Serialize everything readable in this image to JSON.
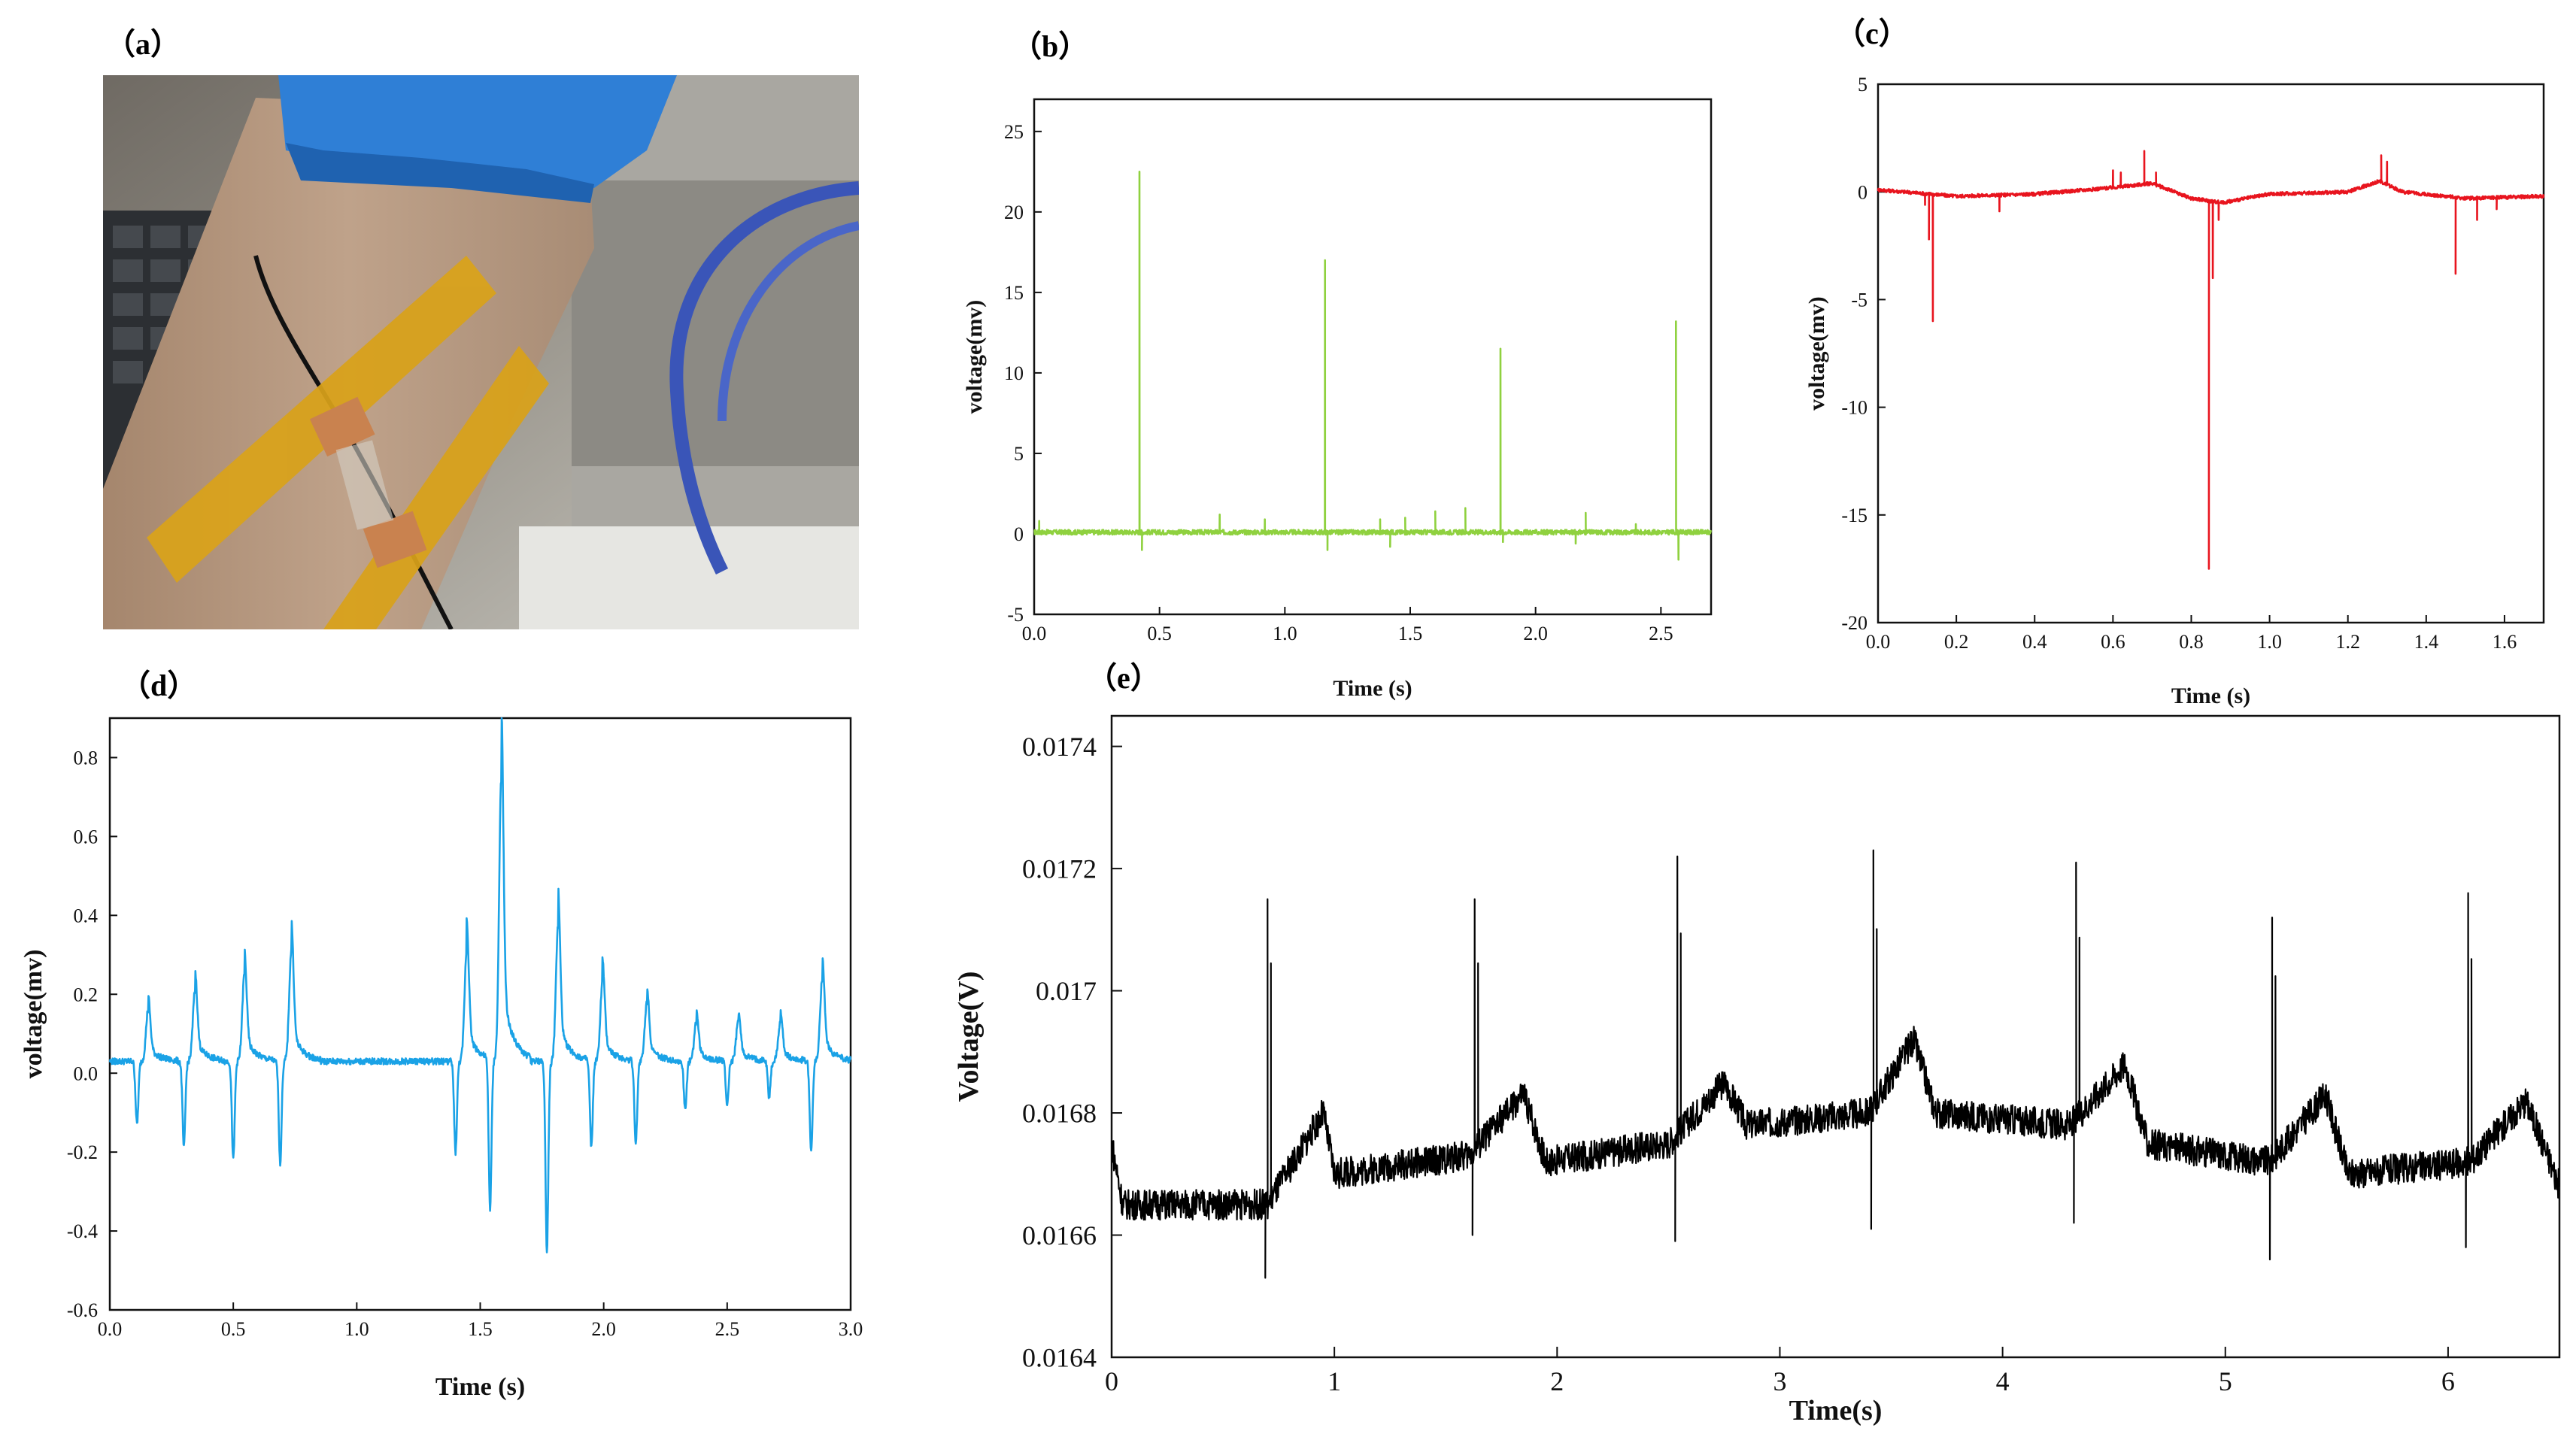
{
  "panels": {
    "a": {
      "label": "（a）"
    },
    "b": {
      "label": "（b）"
    },
    "c": {
      "label": "（c）"
    },
    "d": {
      "label": "（d）"
    },
    "e": {
      "label": "（e）"
    }
  },
  "photo": {
    "icon": "forearm-electrode-photo",
    "colors": {
      "glove": "#2f7fd6",
      "tape": "#d9a21a",
      "copper": "#c9824f",
      "skin": "#b3957d",
      "cable": "#3a55b8"
    }
  },
  "chart_data": [
    {
      "id": "b",
      "type": "line",
      "color": "#8fd13f",
      "xlabel": "Time (s)",
      "ylabel": "voltage(mv)",
      "xlim": [
        0,
        2.7
      ],
      "ylim": [
        -5,
        27
      ],
      "xticks": [
        "0.0",
        "0.5",
        "1.0",
        "1.5",
        "2.0",
        "2.5"
      ],
      "xtick_values": [
        0,
        0.5,
        1.0,
        1.5,
        2.0,
        2.5
      ],
      "yticks": [
        "-5",
        "0",
        "5",
        "10",
        "15",
        "20",
        "25"
      ],
      "ytick_values": [
        -5,
        0,
        5,
        10,
        15,
        20,
        25
      ],
      "baseline": 0.1,
      "noise": 0.15,
      "spikes": [
        {
          "x": 0.42,
          "y": 22.5
        },
        {
          "x": 0.43,
          "y": -1.0
        },
        {
          "x": 1.16,
          "y": 17.0
        },
        {
          "x": 1.17,
          "y": -1.0
        },
        {
          "x": 1.86,
          "y": 11.5
        },
        {
          "x": 1.87,
          "y": -0.5
        },
        {
          "x": 2.56,
          "y": 13.2
        },
        {
          "x": 2.57,
          "y": -1.6
        },
        {
          "x": 0.02,
          "y": 0.8
        },
        {
          "x": 0.74,
          "y": 1.2
        },
        {
          "x": 0.92,
          "y": 0.9
        },
        {
          "x": 1.38,
          "y": 0.9
        },
        {
          "x": 1.48,
          "y": 1.0
        },
        {
          "x": 1.6,
          "y": 1.4
        },
        {
          "x": 1.72,
          "y": 1.6
        },
        {
          "x": 2.2,
          "y": 1.3
        },
        {
          "x": 2.4,
          "y": 0.6
        },
        {
          "x": 1.42,
          "y": -0.8
        },
        {
          "x": 2.16,
          "y": -0.6
        }
      ]
    },
    {
      "id": "c",
      "type": "line",
      "color": "#e8141e",
      "xlabel": "Time (s)",
      "ylabel": "voltage(mv)",
      "xlim": [
        0,
        1.7
      ],
      "ylim": [
        -20,
        5
      ],
      "xticks": [
        "0.0",
        "0.2",
        "0.4",
        "0.6",
        "0.8",
        "1.0",
        "1.2",
        "1.4",
        "1.6"
      ],
      "xtick_values": [
        0,
        0.2,
        0.4,
        0.6,
        0.8,
        1.0,
        1.2,
        1.4,
        1.6
      ],
      "yticks": [
        "-20",
        "-15",
        "-10",
        "-5",
        "0",
        "5"
      ],
      "ytick_values": [
        -20,
        -15,
        -10,
        -5,
        0,
        5
      ],
      "baseline_points": [
        [
          0,
          0.1
        ],
        [
          0.2,
          -0.2
        ],
        [
          0.4,
          -0.1
        ],
        [
          0.6,
          0.2
        ],
        [
          0.7,
          0.4
        ],
        [
          0.8,
          -0.3
        ],
        [
          0.88,
          -0.5
        ],
        [
          1.0,
          -0.1
        ],
        [
          1.2,
          0.0
        ],
        [
          1.28,
          0.5
        ],
        [
          1.34,
          0.0
        ],
        [
          1.5,
          -0.3
        ],
        [
          1.7,
          -0.2
        ]
      ],
      "noise": 0.08,
      "spikes": [
        {
          "x": 0.13,
          "y": -2.2
        },
        {
          "x": 0.14,
          "y": -6.0
        },
        {
          "x": 0.12,
          "y": -0.6
        },
        {
          "x": 0.31,
          "y": -0.9
        },
        {
          "x": 0.6,
          "y": 1.0
        },
        {
          "x": 0.62,
          "y": 0.9
        },
        {
          "x": 0.68,
          "y": 1.9
        },
        {
          "x": 0.71,
          "y": 0.9
        },
        {
          "x": 0.845,
          "y": -17.5
        },
        {
          "x": 0.855,
          "y": -4.0
        },
        {
          "x": 0.87,
          "y": -1.3
        },
        {
          "x": 1.285,
          "y": 1.7
        },
        {
          "x": 1.3,
          "y": 1.4
        },
        {
          "x": 1.475,
          "y": -3.8
        },
        {
          "x": 1.53,
          "y": -1.3
        },
        {
          "x": 1.58,
          "y": -0.8
        }
      ]
    },
    {
      "id": "d",
      "type": "line",
      "color": "#1aa2e6",
      "xlabel": "Time (s)",
      "ylabel": "voltage(mv)",
      "xlim": [
        0,
        3.0
      ],
      "ylim": [
        -0.6,
        0.9
      ],
      "xticks": [
        "0.0",
        "0.5",
        "1.0",
        "1.5",
        "2.0",
        "2.5",
        "3.0"
      ],
      "xtick_values": [
        0,
        0.5,
        1.0,
        1.5,
        2.0,
        2.5,
        3.0
      ],
      "yticks": [
        "-0.6",
        "-0.4",
        "-0.2",
        "0.0",
        "0.2",
        "0.4",
        "0.6",
        "0.8"
      ],
      "ytick_values": [
        -0.6,
        -0.4,
        -0.2,
        0.0,
        0.2,
        0.4,
        0.6,
        0.8
      ],
      "baseline": 0.03,
      "noise": 0.008,
      "beats": [
        {
          "neg_x": 0.11,
          "neg": -0.16,
          "pos": 0.13
        },
        {
          "neg_x": 0.3,
          "neg": -0.22,
          "pos": 0.18
        },
        {
          "neg_x": 0.5,
          "neg": -0.25,
          "pos": 0.22
        },
        {
          "neg_x": 0.69,
          "neg": -0.26,
          "pos": 0.28
        },
        {
          "neg_x": 1.4,
          "neg": -0.23,
          "pos": 0.28
        },
        {
          "neg_x": 1.54,
          "neg": -0.38,
          "pos": 0.71
        },
        {
          "neg_x": 1.77,
          "neg": -0.48,
          "pos": 0.34
        },
        {
          "neg_x": 1.95,
          "neg": -0.22,
          "pos": 0.2
        },
        {
          "neg_x": 2.13,
          "neg": -0.21,
          "pos": 0.15
        },
        {
          "neg_x": 2.33,
          "neg": -0.12,
          "pos": 0.1
        },
        {
          "neg_x": 2.5,
          "neg": -0.11,
          "pos": 0.1
        },
        {
          "neg_x": 2.67,
          "neg": -0.09,
          "pos": 0.1
        },
        {
          "neg_x": 2.84,
          "neg": -0.23,
          "pos": 0.21
        }
      ]
    },
    {
      "id": "e",
      "type": "line",
      "color": "#000000",
      "xlabel": "Time(s)",
      "ylabel": "Voltage(V)",
      "xlim": [
        0,
        6.5
      ],
      "ylim": [
        0.0164,
        0.01745
      ],
      "xticks": [
        "0",
        "1",
        "2",
        "3",
        "4",
        "5",
        "6"
      ],
      "xtick_values": [
        0,
        1,
        2,
        3,
        4,
        5,
        6
      ],
      "yticks": [
        "0.0164",
        "0.0166",
        "0.0168",
        "0.017",
        "0.0172",
        "0.0174"
      ],
      "ytick_values": [
        0.0164,
        0.0166,
        0.0168,
        0.017,
        0.0172,
        0.0174
      ],
      "baseline_points": [
        [
          0,
          0.01675
        ],
        [
          0.05,
          0.01665
        ],
        [
          0.7,
          0.01665
        ],
        [
          0.95,
          0.0168
        ],
        [
          1.0,
          0.0167
        ],
        [
          1.6,
          0.01673
        ],
        [
          1.85,
          0.01683
        ],
        [
          1.95,
          0.01672
        ],
        [
          2.5,
          0.01675
        ],
        [
          2.75,
          0.01685
        ],
        [
          2.85,
          0.01678
        ],
        [
          3.4,
          0.0168
        ],
        [
          3.6,
          0.01692
        ],
        [
          3.7,
          0.0168
        ],
        [
          4.3,
          0.01678
        ],
        [
          4.55,
          0.01688
        ],
        [
          4.65,
          0.01675
        ],
        [
          5.2,
          0.01672
        ],
        [
          5.45,
          0.01683
        ],
        [
          5.55,
          0.0167
        ],
        [
          6.1,
          0.01672
        ],
        [
          6.35,
          0.01682
        ],
        [
          6.5,
          0.01668
        ]
      ],
      "noise": 2.5e-05,
      "beats": [
        {
          "x": 0.7,
          "peak": 0.01715,
          "trough": 0.01653
        },
        {
          "x": 1.63,
          "peak": 0.01715,
          "trough": 0.0166
        },
        {
          "x": 2.54,
          "peak": 0.01722,
          "trough": 0.01659
        },
        {
          "x": 3.42,
          "peak": 0.01723,
          "trough": 0.01661
        },
        {
          "x": 4.33,
          "peak": 0.01721,
          "trough": 0.01662
        },
        {
          "x": 5.21,
          "peak": 0.01712,
          "trough": 0.01656
        },
        {
          "x": 6.09,
          "peak": 0.01716,
          "trough": 0.01658
        }
      ]
    }
  ]
}
